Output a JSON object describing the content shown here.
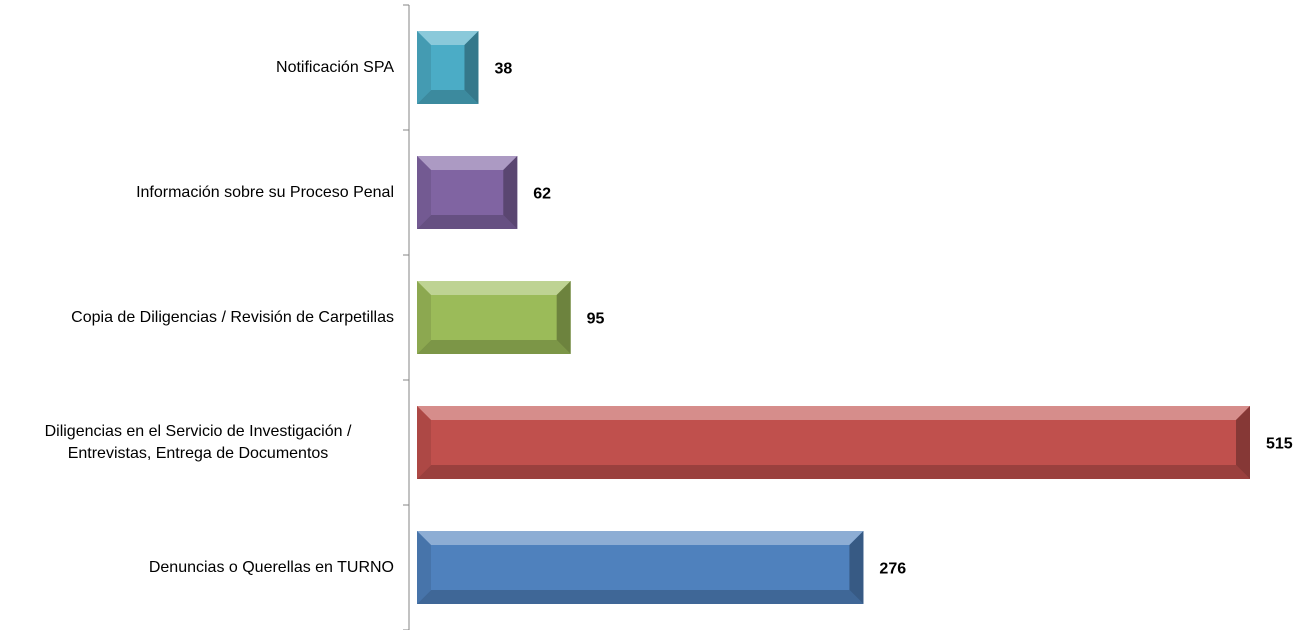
{
  "chart_data": {
    "type": "bar",
    "orientation": "horizontal",
    "categories": [
      "Notificación SPA",
      "Información sobre su Proceso Penal",
      "Copia de Diligencias / Revisión de Carpetillas",
      "Diligencias en el Servicio de Investigación / Entrevistas, Entrega de Documentos",
      "Denuncias o Querellas en TURNO"
    ],
    "values": [
      38,
      62,
      95,
      515,
      276
    ],
    "colors": [
      "#4bacc6",
      "#8064a2",
      "#9bbb59",
      "#c0504d",
      "#4f81bd"
    ]
  }
}
